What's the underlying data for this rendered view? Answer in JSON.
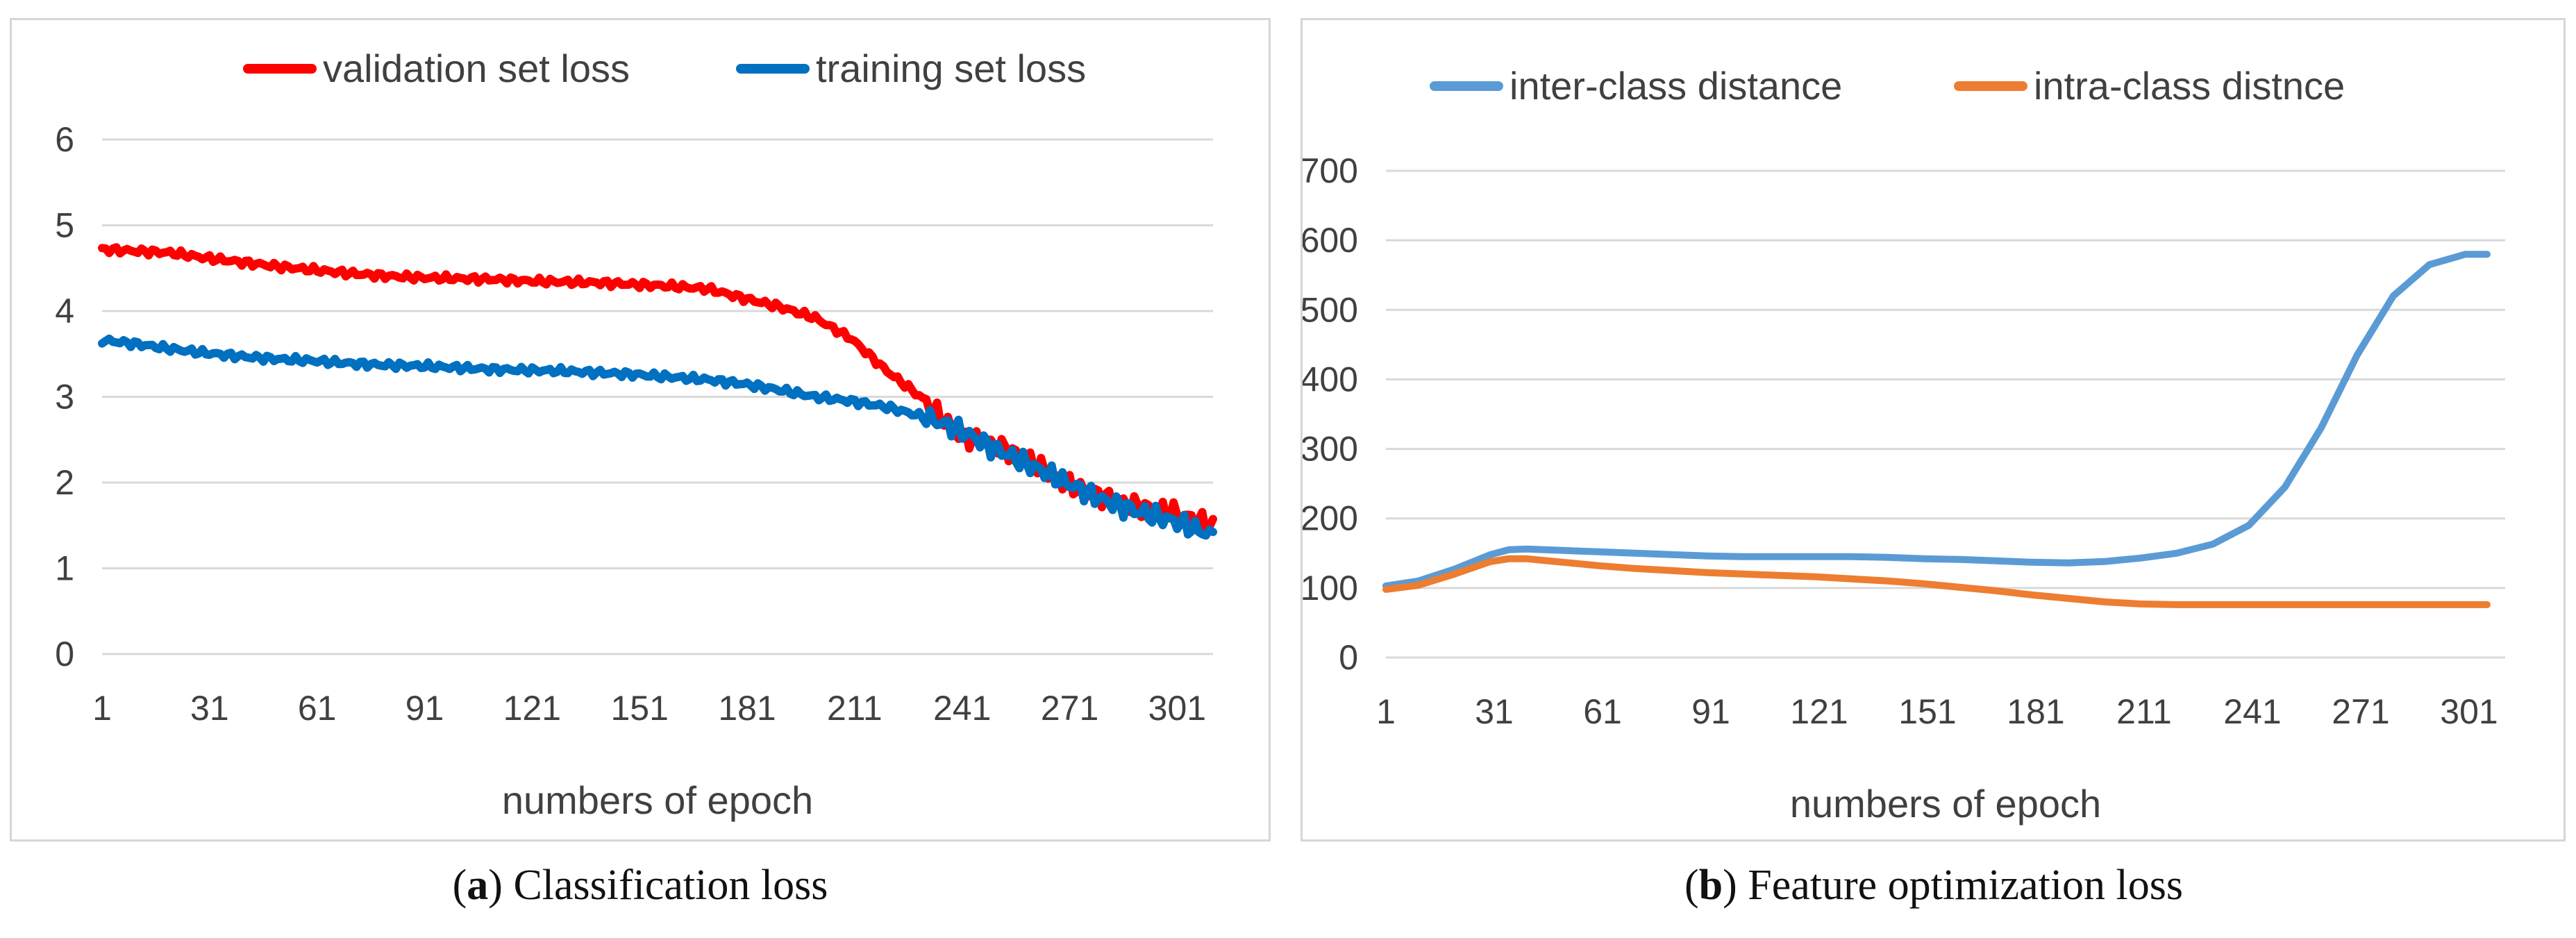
{
  "chart_data": [
    {
      "type": "line",
      "xlabel": "numbers of epoch",
      "ylabel": "",
      "ylim": [
        0,
        6
      ],
      "yticks": [
        0,
        1,
        2,
        3,
        4,
        5,
        6
      ],
      "xticks": [
        1,
        31,
        61,
        91,
        121,
        151,
        181,
        211,
        241,
        271,
        301
      ],
      "xlim": [
        1,
        311
      ],
      "grid": true,
      "legend_position": "top",
      "caption_letter": "a",
      "caption_text": " Classification loss",
      "series": [
        {
          "name": "validation set loss",
          "color": "#ff0000",
          "x": [
            1,
            10,
            20,
            30,
            40,
            50,
            60,
            70,
            80,
            90,
            100,
            110,
            120,
            130,
            140,
            150,
            160,
            170,
            180,
            190,
            200,
            210,
            220,
            230,
            240,
            250,
            260,
            270,
            280,
            290,
            300,
            311
          ],
          "values": [
            4.72,
            4.7,
            4.68,
            4.62,
            4.57,
            4.52,
            4.48,
            4.44,
            4.41,
            4.39,
            4.38,
            4.37,
            4.35,
            4.34,
            4.33,
            4.31,
            4.29,
            4.26,
            4.15,
            4.05,
            3.92,
            3.68,
            3.3,
            2.98,
            2.55,
            2.45,
            2.25,
            1.98,
            1.84,
            1.72,
            1.65,
            1.5
          ]
        },
        {
          "name": "training set loss",
          "color": "#0070c0",
          "x": [
            1,
            10,
            20,
            30,
            40,
            50,
            60,
            70,
            80,
            90,
            100,
            110,
            120,
            130,
            140,
            150,
            160,
            170,
            180,
            190,
            200,
            210,
            220,
            230,
            240,
            250,
            260,
            270,
            280,
            290,
            300,
            311
          ],
          "values": [
            3.66,
            3.62,
            3.56,
            3.51,
            3.47,
            3.44,
            3.42,
            3.39,
            3.37,
            3.36,
            3.34,
            3.32,
            3.31,
            3.3,
            3.28,
            3.26,
            3.23,
            3.2,
            3.15,
            3.08,
            3.0,
            2.95,
            2.88,
            2.77,
            2.62,
            2.4,
            2.2,
            2.0,
            1.8,
            1.66,
            1.55,
            1.38
          ]
        }
      ]
    },
    {
      "type": "line",
      "xlabel": "numbers of epoch",
      "ylabel": "",
      "ylim": [
        0,
        700
      ],
      "yticks": [
        0,
        100,
        200,
        300,
        400,
        500,
        600,
        700
      ],
      "xticks": [
        1,
        31,
        61,
        91,
        121,
        151,
        181,
        211,
        241,
        271,
        301
      ],
      "xlim": [
        1,
        311
      ],
      "grid": true,
      "legend_position": "top",
      "caption_letter": "b",
      "caption_text": " Feature optimization loss",
      "series": [
        {
          "name": "inter-class distance",
          "color": "#5b9bd5",
          "x": [
            1,
            10,
            20,
            30,
            35,
            40,
            50,
            60,
            70,
            80,
            90,
            100,
            110,
            120,
            130,
            140,
            150,
            160,
            170,
            180,
            190,
            200,
            210,
            220,
            230,
            240,
            250,
            260,
            270,
            280,
            290,
            300,
            306
          ],
          "values": [
            103,
            110,
            127,
            148,
            155,
            156,
            154,
            152,
            150,
            148,
            146,
            145,
            145,
            145,
            145,
            144,
            142,
            141,
            139,
            137,
            136,
            138,
            143,
            150,
            163,
            190,
            245,
            330,
            435,
            520,
            565,
            580,
            580
          ]
        },
        {
          "name": "intra-class distnce",
          "color": "#ed7d31",
          "x": [
            1,
            10,
            20,
            30,
            35,
            40,
            50,
            60,
            70,
            80,
            90,
            100,
            110,
            120,
            130,
            140,
            150,
            160,
            170,
            180,
            190,
            200,
            210,
            220,
            230,
            240,
            250,
            260,
            270,
            280,
            290,
            300,
            306
          ],
          "values": [
            98,
            104,
            120,
            138,
            142,
            142,
            137,
            132,
            128,
            125,
            122,
            120,
            118,
            116,
            113,
            110,
            106,
            101,
            96,
            90,
            85,
            80,
            77,
            76,
            76,
            76,
            76,
            76,
            76,
            76,
            76,
            76,
            76
          ]
        }
      ]
    }
  ]
}
